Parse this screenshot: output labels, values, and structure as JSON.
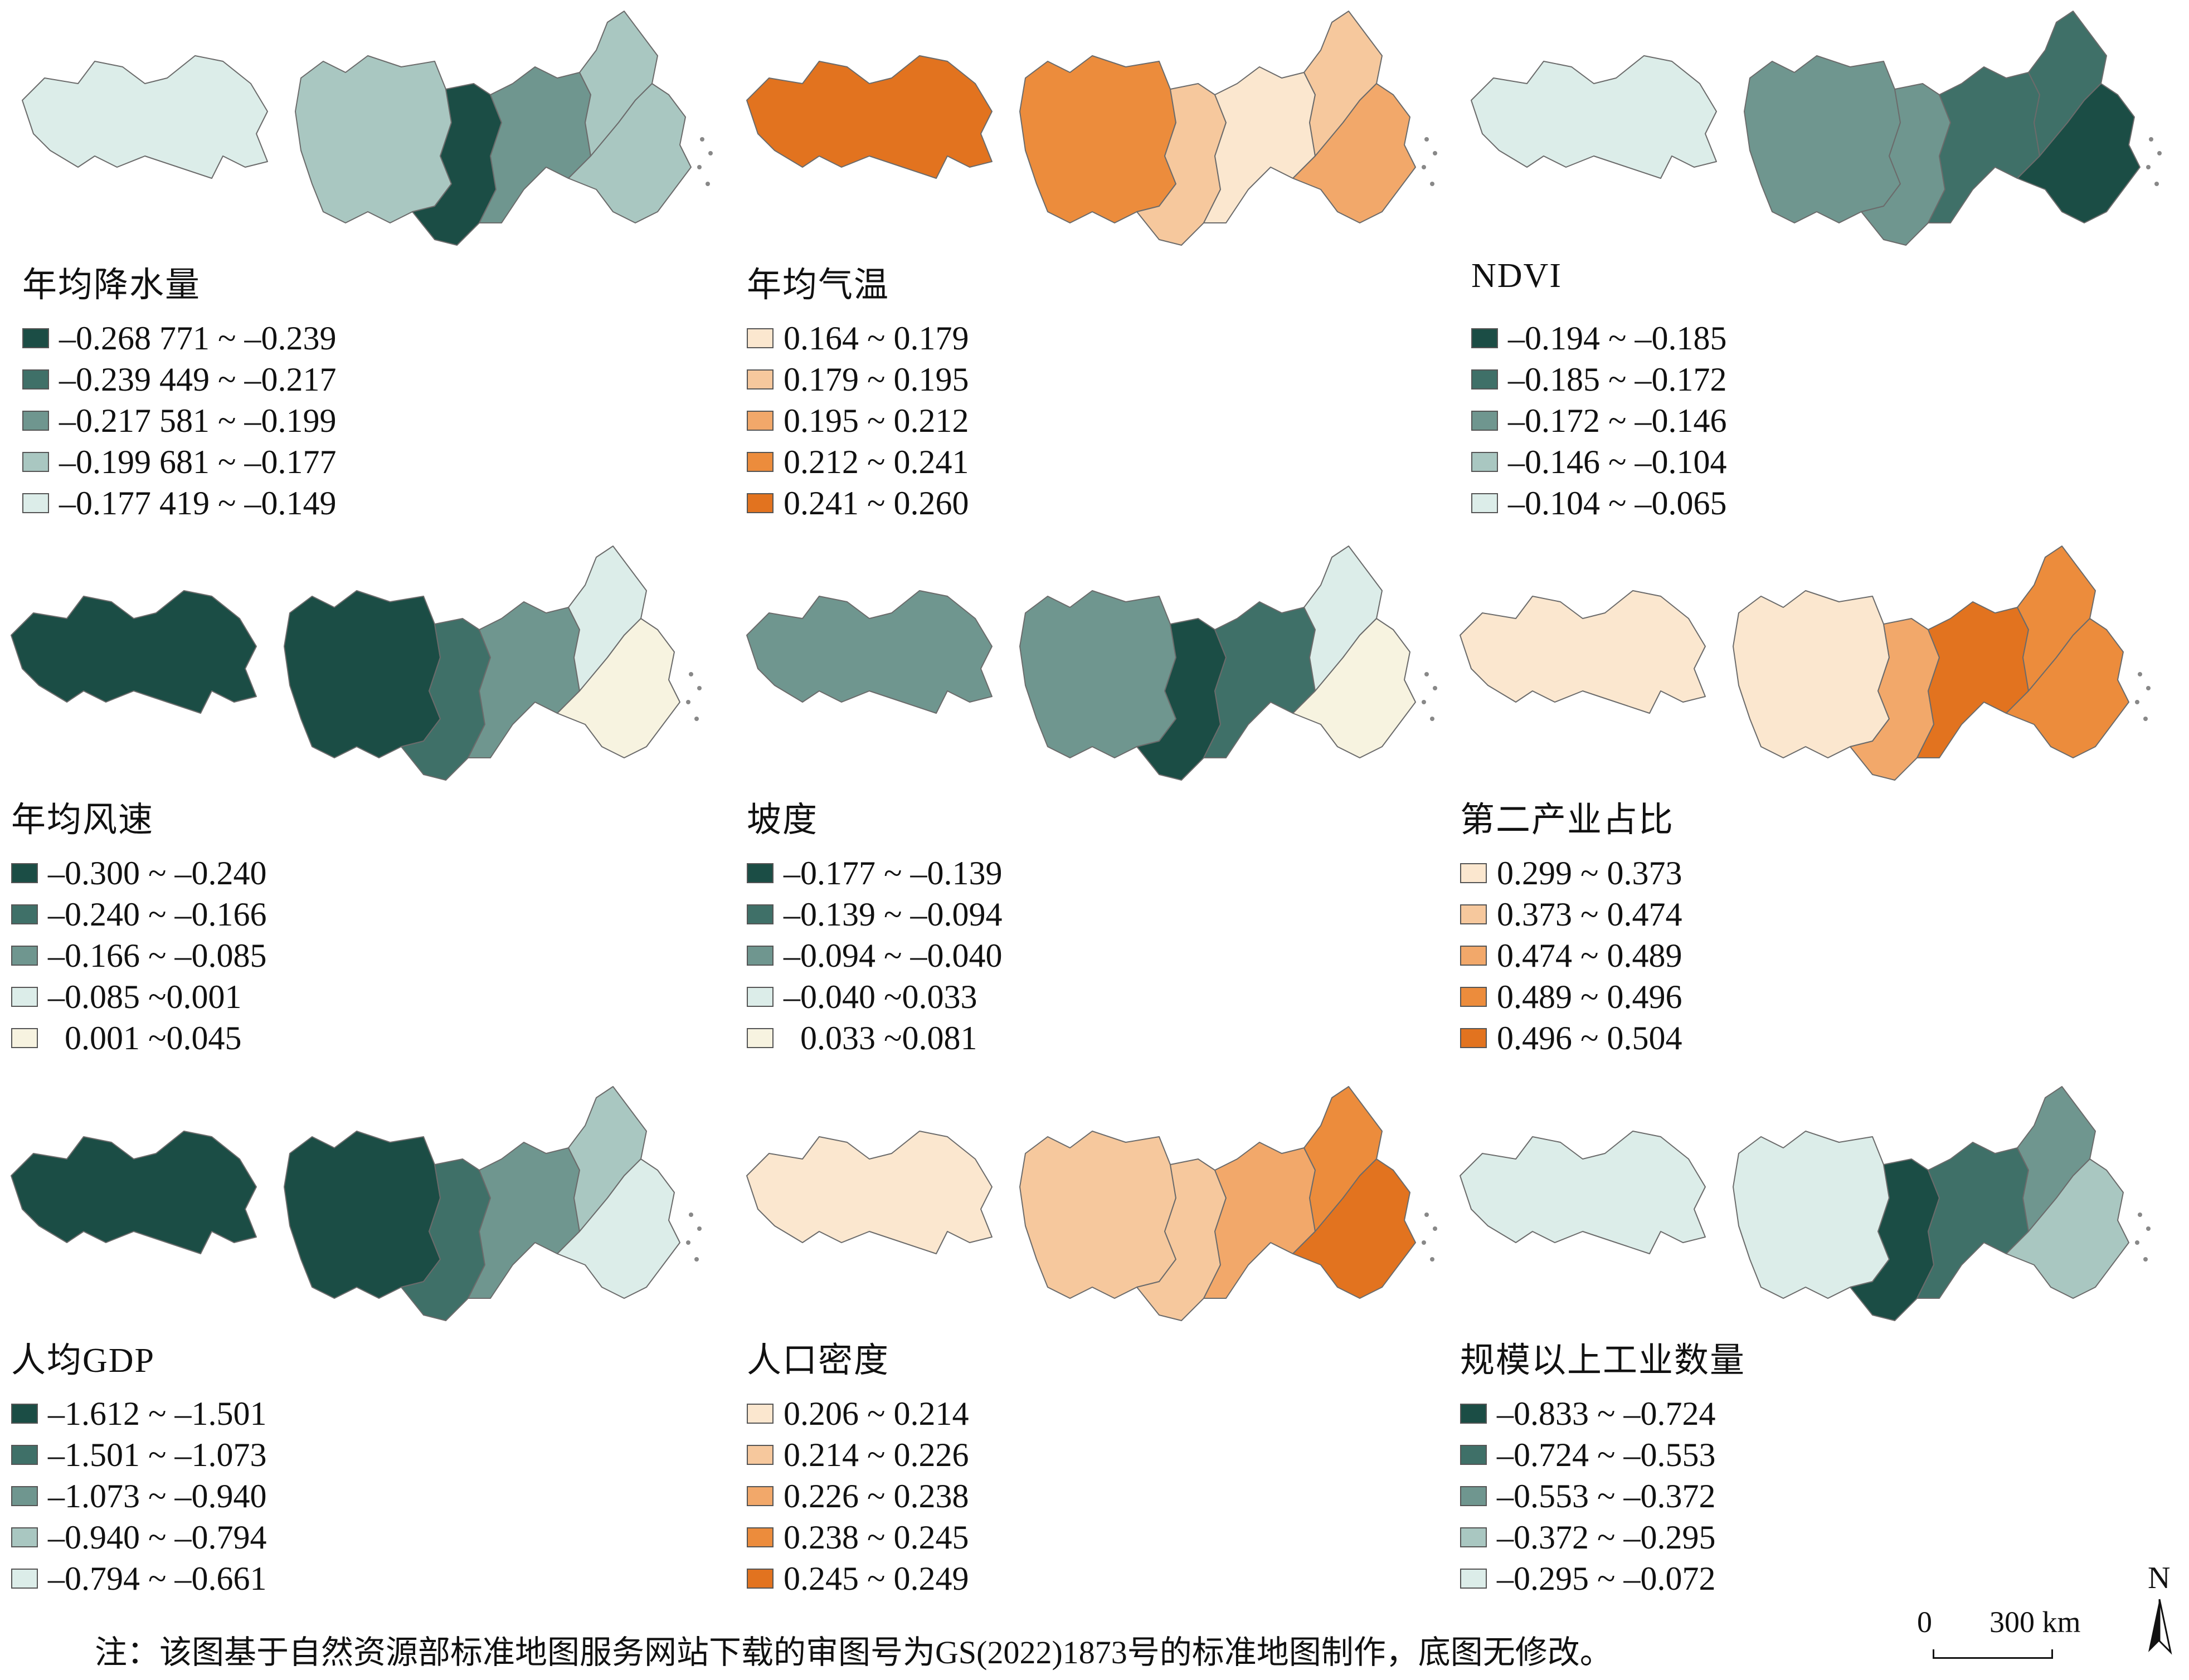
{
  "panels": [
    {
      "id": "precip",
      "title": "年均降水量",
      "palette": [
        "#1b4d45",
        "#3f7068",
        "#6f968f",
        "#a9c7c1",
        "#dcede9"
      ],
      "classes": [
        "–0.268 771 ~ –0.239",
        "–0.239 449 ~ –0.217",
        "–0.217 581 ~ –0.199",
        "–0.199 681 ~ –0.177",
        "–0.177 419 ~ –0.149"
      ],
      "zones": [
        4,
        3,
        0,
        2,
        3,
        3
      ]
    },
    {
      "id": "temp",
      "title": "年均气温",
      "palette": [
        "#fbe7cf",
        "#f6c89d",
        "#f2a86a",
        "#ec8c3c",
        "#e2731f"
      ],
      "classes": [
        "0.164 ~ 0.179",
        "0.179 ~ 0.195",
        "0.195 ~ 0.212",
        "0.212 ~ 0.241",
        "0.241 ~ 0.260"
      ],
      "zones": [
        4,
        3,
        1,
        0,
        1,
        2
      ]
    },
    {
      "id": "ndvi",
      "title": "NDVI",
      "palette": [
        "#1b4d45",
        "#3f7068",
        "#6f968f",
        "#a9c7c1",
        "#dcede9"
      ],
      "classes": [
        "–0.194 ~ –0.185",
        "–0.185 ~ –0.172",
        "–0.172 ~ –0.146",
        "–0.146 ~ –0.104",
        "–0.104 ~ –0.065"
      ],
      "zones": [
        4,
        2,
        2,
        1,
        1,
        0
      ]
    },
    {
      "id": "wind",
      "title": "年均风速",
      "palette": [
        "#1b4d45",
        "#3f7068",
        "#6f968f",
        "#dcede9",
        "#f7f3e0"
      ],
      "classes": [
        "–0.300 ~ –0.240",
        "–0.240 ~ –0.166",
        "–0.166 ~ –0.085",
        "–0.085 ~0.001",
        "  0.001 ~0.045"
      ],
      "zones": [
        0,
        0,
        1,
        2,
        3,
        4
      ]
    },
    {
      "id": "slope",
      "title": "坡度",
      "palette": [
        "#1b4d45",
        "#3f7068",
        "#6f968f",
        "#dcede9",
        "#f7f3e0"
      ],
      "classes": [
        "–0.177 ~ –0.139",
        "–0.139 ~ –0.094",
        "–0.094 ~ –0.040",
        "–0.040 ~0.033",
        "  0.033 ~0.081"
      ],
      "zones": [
        2,
        2,
        0,
        1,
        3,
        4
      ]
    },
    {
      "id": "industry2",
      "title": "第二产业占比",
      "palette": [
        "#fbe7cf",
        "#f6c89d",
        "#f2a86a",
        "#ec8c3c",
        "#e2731f"
      ],
      "classes": [
        "0.299 ~ 0.373",
        "0.373 ~ 0.474",
        "0.474 ~ 0.489",
        "0.489 ~ 0.496",
        "0.496 ~ 0.504"
      ],
      "zones": [
        0,
        0,
        2,
        4,
        3,
        3
      ]
    },
    {
      "id": "gdp",
      "title": "人均GDP",
      "palette": [
        "#1b4d45",
        "#3f7068",
        "#6f968f",
        "#a9c7c1",
        "#dcede9"
      ],
      "classes": [
        "–1.612 ~ –1.501",
        "–1.501 ~ –1.073",
        "–1.073 ~ –0.940",
        "–0.940 ~ –0.794",
        "–0.794 ~ –0.661"
      ],
      "zones": [
        0,
        0,
        1,
        2,
        3,
        4
      ]
    },
    {
      "id": "popdens",
      "title": "人口密度",
      "palette": [
        "#fbe7cf",
        "#f6c89d",
        "#f2a86a",
        "#ec8c3c",
        "#e2731f"
      ],
      "classes": [
        "0.206 ~ 0.214",
        "0.214 ~ 0.226",
        "0.226 ~ 0.238",
        "0.238 ~ 0.245",
        "0.245 ~ 0.249"
      ],
      "zones": [
        0,
        1,
        1,
        2,
        3,
        4
      ]
    },
    {
      "id": "firms",
      "title": "规模以上工业数量",
      "palette": [
        "#1b4d45",
        "#3f7068",
        "#6f968f",
        "#a9c7c1",
        "#dcede9"
      ],
      "classes": [
        "–0.833 ~ –0.724",
        "–0.724 ~ –0.553",
        "–0.553 ~ –0.372",
        "–0.372 ~ –0.295",
        "–0.295 ~ –0.072"
      ],
      "zones": [
        4,
        4,
        0,
        1,
        2,
        3
      ]
    }
  ],
  "note": "注：该图基于自然资源部标准地图服务网站下载的审图号为GS(2022)1873号的标准地图制作，底图无修改。",
  "scale": {
    "zero": "0",
    "label": "300 km"
  },
  "north": "N"
}
